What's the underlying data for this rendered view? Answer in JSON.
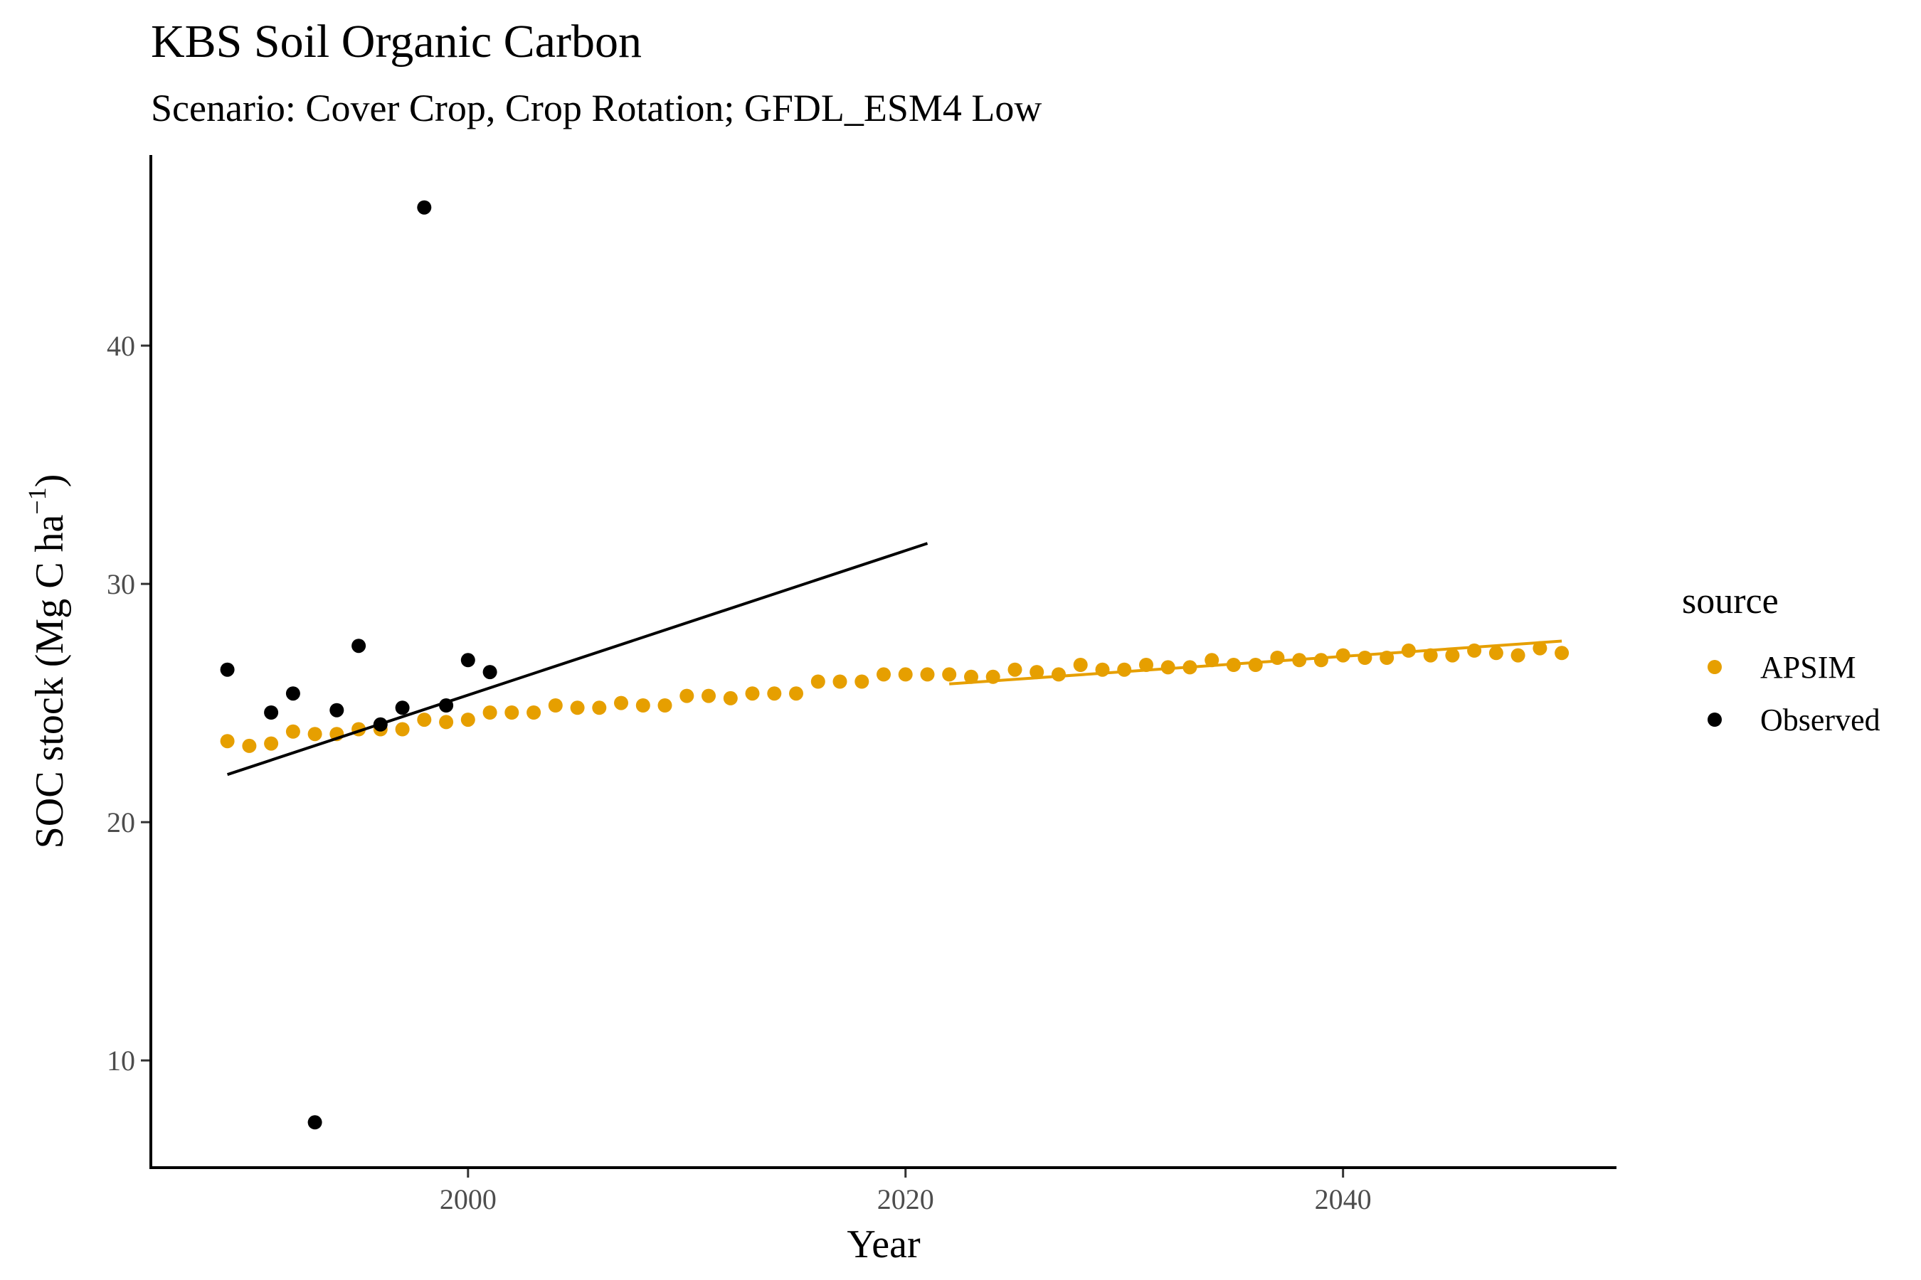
{
  "chart_data": {
    "type": "scatter",
    "title": "KBS Soil Organic Carbon",
    "subtitle": "Scenario: Cover Crop, Crop Rotation; GFDL_ESM4 Low",
    "xlabel": "Year",
    "ylabel": "SOC stock (Mg C ha",
    "ylabel_superscript": "−1",
    "ylabel_close": ")",
    "xlim": [
      1985.5,
      2052.5
    ],
    "ylim": [
      5.5,
      48
    ],
    "x_ticks": [
      2000,
      2020,
      2040
    ],
    "y_ticks": [
      10,
      20,
      30,
      40
    ],
    "grid": false,
    "legend": {
      "title": "source",
      "position": "right",
      "entries": [
        {
          "label": "APSIM",
          "color": "#E69F00"
        },
        {
          "label": "Observed",
          "color": "#000000"
        }
      ]
    },
    "series": [
      {
        "name": "APSIM",
        "color": "#E69F00",
        "x": [
          1989,
          1990,
          1991,
          1992,
          1993,
          1994,
          1995,
          1996,
          1997,
          1998,
          1999,
          2000,
          2001,
          2002,
          2003,
          2004,
          2005,
          2006,
          2007,
          2008,
          2009,
          2010,
          2011,
          2012,
          2013,
          2014,
          2015,
          2016,
          2017,
          2018,
          2019,
          2020,
          2021,
          2022,
          2023,
          2024,
          2025,
          2026,
          2027,
          2028,
          2029,
          2030,
          2031,
          2032,
          2033,
          2034,
          2035,
          2036,
          2037,
          2038,
          2039,
          2040,
          2041,
          2042,
          2043,
          2044,
          2045,
          2046,
          2047,
          2048,
          2049,
          2050
        ],
        "y": [
          23.4,
          23.2,
          23.3,
          23.8,
          23.7,
          23.7,
          23.9,
          23.9,
          23.9,
          24.3,
          24.2,
          24.3,
          24.6,
          24.6,
          24.6,
          24.9,
          24.8,
          24.8,
          25.0,
          24.9,
          24.9,
          25.3,
          25.3,
          25.2,
          25.4,
          25.4,
          25.4,
          25.9,
          25.9,
          25.9,
          26.2,
          26.2,
          26.2,
          26.2,
          26.1,
          26.1,
          26.4,
          26.3,
          26.2,
          26.6,
          26.4,
          26.4,
          26.6,
          26.5,
          26.5,
          26.8,
          26.6,
          26.6,
          26.9,
          26.8,
          26.8,
          27.0,
          26.9,
          26.9,
          27.2,
          27.0,
          27.0,
          27.2,
          27.1,
          27.0,
          27.3,
          27.1
        ]
      },
      {
        "name": "Observed",
        "color": "#000000",
        "x": [
          1989,
          1991,
          1992,
          1993,
          1994,
          1995,
          1996,
          1997,
          1998,
          1999,
          2000,
          2001
        ],
        "y": [
          26.4,
          24.6,
          25.4,
          7.4,
          24.7,
          27.4,
          24.1,
          24.8,
          45.8,
          24.9,
          26.8,
          26.3
        ]
      }
    ],
    "trend_lines": [
      {
        "series": "Observed",
        "color": "#000000",
        "x": [
          1989,
          2021
        ],
        "y": [
          22.0,
          31.7
        ]
      },
      {
        "series": "APSIM",
        "color": "#E69F00",
        "x": [
          2022,
          2050
        ],
        "y": [
          25.8,
          27.6
        ]
      }
    ]
  }
}
